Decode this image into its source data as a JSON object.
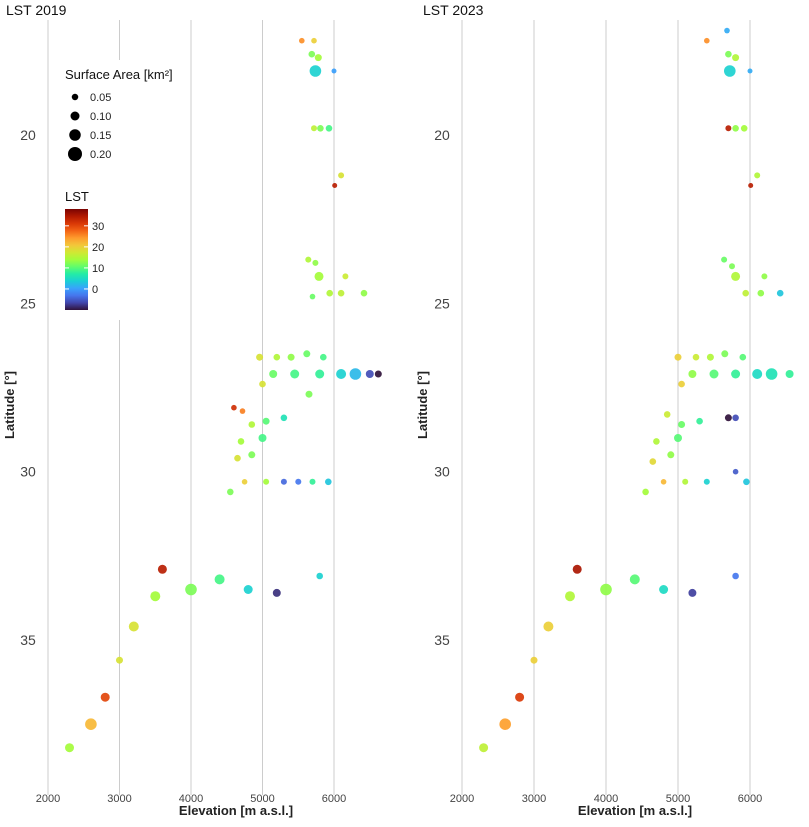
{
  "chart_data": [
    {
      "type": "scatter",
      "title": "LST 2019",
      "xlabel": "Elevation [m a.s.l.]",
      "ylabel": "Latitude [°]",
      "xlim": [
        1950,
        6800
      ],
      "ylim": [
        16.4,
        39.4
      ],
      "x_ticks": [
        2000,
        3000,
        4000,
        5000,
        6000
      ],
      "y_ticks": [
        20,
        25,
        30,
        35
      ],
      "y_reversed": true,
      "gridlines": "vertical",
      "size_variable": "Surface Area [km²]",
      "color_variable": "LST",
      "points": [
        {
          "x": 5550,
          "y": 17.2,
          "size": 0.03,
          "lst": 25
        },
        {
          "x": 5720,
          "y": 17.2,
          "size": 0.03,
          "lst": 20
        },
        {
          "x": 5690,
          "y": 17.6,
          "size": 0.05,
          "lst": 12
        },
        {
          "x": 5780,
          "y": 17.7,
          "size": 0.06,
          "lst": 14
        },
        {
          "x": 5740,
          "y": 18.1,
          "size": 0.15,
          "lst": 4
        },
        {
          "x": 6000,
          "y": 18.1,
          "size": 0.02,
          "lst": 0
        },
        {
          "x": 5720,
          "y": 19.8,
          "size": 0.04,
          "lst": 16
        },
        {
          "x": 5810,
          "y": 19.8,
          "size": 0.05,
          "lst": 12
        },
        {
          "x": 5930,
          "y": 19.8,
          "size": 0.05,
          "lst": 9
        },
        {
          "x": 6100,
          "y": 21.2,
          "size": 0.04,
          "lst": 18
        },
        {
          "x": 6010,
          "y": 21.5,
          "size": 0.02,
          "lst": 34
        },
        {
          "x": 5640,
          "y": 23.7,
          "size": 0.04,
          "lst": 15
        },
        {
          "x": 5740,
          "y": 23.8,
          "size": 0.04,
          "lst": 13
        },
        {
          "x": 5790,
          "y": 24.2,
          "size": 0.1,
          "lst": 14
        },
        {
          "x": 6160,
          "y": 24.2,
          "size": 0.04,
          "lst": 17
        },
        {
          "x": 5940,
          "y": 24.7,
          "size": 0.05,
          "lst": 15
        },
        {
          "x": 6100,
          "y": 24.7,
          "size": 0.05,
          "lst": 16
        },
        {
          "x": 6420,
          "y": 24.7,
          "size": 0.05,
          "lst": 13
        },
        {
          "x": 5700,
          "y": 24.8,
          "size": 0.03,
          "lst": 11
        },
        {
          "x": 4960,
          "y": 26.6,
          "size": 0.06,
          "lst": 18
        },
        {
          "x": 5200,
          "y": 26.6,
          "size": 0.05,
          "lst": 15
        },
        {
          "x": 5400,
          "y": 26.6,
          "size": 0.06,
          "lst": 13
        },
        {
          "x": 5620,
          "y": 26.5,
          "size": 0.06,
          "lst": 11
        },
        {
          "x": 5850,
          "y": 26.6,
          "size": 0.05,
          "lst": 9
        },
        {
          "x": 5150,
          "y": 27.1,
          "size": 0.08,
          "lst": 11
        },
        {
          "x": 5450,
          "y": 27.1,
          "size": 0.1,
          "lst": 9
        },
        {
          "x": 5800,
          "y": 27.1,
          "size": 0.1,
          "lst": 8
        },
        {
          "x": 6100,
          "y": 27.1,
          "size": 0.12,
          "lst": 4
        },
        {
          "x": 6300,
          "y": 27.1,
          "size": 0.15,
          "lst": 2
        },
        {
          "x": 6500,
          "y": 27.1,
          "size": 0.08,
          "lst": -6
        },
        {
          "x": 6620,
          "y": 27.1,
          "size": 0.06,
          "lst": -10
        },
        {
          "x": 5000,
          "y": 27.4,
          "size": 0.05,
          "lst": 18
        },
        {
          "x": 5650,
          "y": 27.7,
          "size": 0.06,
          "lst": 12
        },
        {
          "x": 4600,
          "y": 28.1,
          "size": 0.03,
          "lst": 32
        },
        {
          "x": 4720,
          "y": 28.2,
          "size": 0.03,
          "lst": 26
        },
        {
          "x": 4850,
          "y": 28.6,
          "size": 0.05,
          "lst": 15
        },
        {
          "x": 5050,
          "y": 28.5,
          "size": 0.06,
          "lst": 10
        },
        {
          "x": 5300,
          "y": 28.4,
          "size": 0.05,
          "lst": 6
        },
        {
          "x": 4700,
          "y": 29.1,
          "size": 0.05,
          "lst": 14
        },
        {
          "x": 5000,
          "y": 29.0,
          "size": 0.08,
          "lst": 9
        },
        {
          "x": 4650,
          "y": 29.6,
          "size": 0.05,
          "lst": 18
        },
        {
          "x": 4850,
          "y": 29.5,
          "size": 0.06,
          "lst": 12
        },
        {
          "x": 4550,
          "y": 30.6,
          "size": 0.05,
          "lst": 12
        },
        {
          "x": 4750,
          "y": 30.3,
          "size": 0.03,
          "lst": 20
        },
        {
          "x": 5050,
          "y": 30.3,
          "size": 0.04,
          "lst": 14
        },
        {
          "x": 5300,
          "y": 30.3,
          "size": 0.04,
          "lst": -4
        },
        {
          "x": 5500,
          "y": 30.3,
          "size": 0.04,
          "lst": -3
        },
        {
          "x": 5700,
          "y": 30.3,
          "size": 0.04,
          "lst": 8
        },
        {
          "x": 5920,
          "y": 30.3,
          "size": 0.05,
          "lst": 3
        },
        {
          "x": 2300,
          "y": 38.2,
          "size": 0.1,
          "lst": 14
        },
        {
          "x": 2600,
          "y": 37.5,
          "size": 0.15,
          "lst": 22
        },
        {
          "x": 2800,
          "y": 36.7,
          "size": 0.1,
          "lst": 30
        },
        {
          "x": 3000,
          "y": 35.6,
          "size": 0.06,
          "lst": 18
        },
        {
          "x": 3200,
          "y": 34.6,
          "size": 0.12,
          "lst": 18
        },
        {
          "x": 3500,
          "y": 33.7,
          "size": 0.12,
          "lst": 14
        },
        {
          "x": 3600,
          "y": 32.9,
          "size": 0.1,
          "lst": 34
        },
        {
          "x": 4000,
          "y": 33.5,
          "size": 0.15,
          "lst": 12
        },
        {
          "x": 4400,
          "y": 33.2,
          "size": 0.12,
          "lst": 9
        },
        {
          "x": 4800,
          "y": 33.5,
          "size": 0.1,
          "lst": 4
        },
        {
          "x": 5200,
          "y": 33.6,
          "size": 0.08,
          "lst": -8
        },
        {
          "x": 5800,
          "y": 33.1,
          "size": 0.05,
          "lst": 4
        }
      ]
    },
    {
      "type": "scatter",
      "title": "LST 2023",
      "xlabel": "Elevation [m a.s.l.]",
      "ylabel": "Latitude [°]",
      "xlim": [
        1950,
        6800
      ],
      "ylim": [
        16.4,
        39.4
      ],
      "x_ticks": [
        2000,
        3000,
        4000,
        5000,
        6000
      ],
      "y_ticks": [
        20,
        25,
        30,
        35
      ],
      "y_reversed": true,
      "gridlines": "vertical",
      "size_variable": "Surface Area [km²]",
      "color_variable": "LST",
      "points": [
        {
          "x": 5400,
          "y": 17.2,
          "size": 0.03,
          "lst": 25
        },
        {
          "x": 5680,
          "y": 16.9,
          "size": 0.03,
          "lst": 1
        },
        {
          "x": 5700,
          "y": 17.6,
          "size": 0.05,
          "lst": 12
        },
        {
          "x": 5800,
          "y": 17.7,
          "size": 0.06,
          "lst": 15
        },
        {
          "x": 5720,
          "y": 18.1,
          "size": 0.15,
          "lst": 4
        },
        {
          "x": 6000,
          "y": 18.1,
          "size": 0.02,
          "lst": 1
        },
        {
          "x": 5700,
          "y": 19.8,
          "size": 0.04,
          "lst": 34
        },
        {
          "x": 5800,
          "y": 19.8,
          "size": 0.05,
          "lst": 13
        },
        {
          "x": 5920,
          "y": 19.8,
          "size": 0.05,
          "lst": 14
        },
        {
          "x": 6100,
          "y": 21.2,
          "size": 0.04,
          "lst": 15
        },
        {
          "x": 6010,
          "y": 21.5,
          "size": 0.02,
          "lst": 34
        },
        {
          "x": 5640,
          "y": 23.7,
          "size": 0.04,
          "lst": 11
        },
        {
          "x": 5750,
          "y": 23.9,
          "size": 0.04,
          "lst": 12
        },
        {
          "x": 5800,
          "y": 24.2,
          "size": 0.1,
          "lst": 15
        },
        {
          "x": 6200,
          "y": 24.2,
          "size": 0.04,
          "lst": 13
        },
        {
          "x": 5940,
          "y": 24.7,
          "size": 0.05,
          "lst": 16
        },
        {
          "x": 6150,
          "y": 24.7,
          "size": 0.05,
          "lst": 13
        },
        {
          "x": 6420,
          "y": 24.7,
          "size": 0.05,
          "lst": 3
        },
        {
          "x": 5000,
          "y": 26.6,
          "size": 0.06,
          "lst": 20
        },
        {
          "x": 5250,
          "y": 26.6,
          "size": 0.05,
          "lst": 17
        },
        {
          "x": 5450,
          "y": 26.6,
          "size": 0.06,
          "lst": 15
        },
        {
          "x": 5650,
          "y": 26.5,
          "size": 0.06,
          "lst": 12
        },
        {
          "x": 5900,
          "y": 26.6,
          "size": 0.05,
          "lst": 10
        },
        {
          "x": 5200,
          "y": 27.1,
          "size": 0.08,
          "lst": 13
        },
        {
          "x": 5500,
          "y": 27.1,
          "size": 0.1,
          "lst": 10
        },
        {
          "x": 5800,
          "y": 27.1,
          "size": 0.1,
          "lst": 8
        },
        {
          "x": 6100,
          "y": 27.1,
          "size": 0.12,
          "lst": 5
        },
        {
          "x": 6300,
          "y": 27.1,
          "size": 0.15,
          "lst": 6
        },
        {
          "x": 6550,
          "y": 27.1,
          "size": 0.08,
          "lst": 8
        },
        {
          "x": 5050,
          "y": 27.4,
          "size": 0.05,
          "lst": 20
        },
        {
          "x": 5700,
          "y": 28.4,
          "size": 0.06,
          "lst": -10
        },
        {
          "x": 5800,
          "y": 28.4,
          "size": 0.05,
          "lst": -6
        },
        {
          "x": 4850,
          "y": 28.3,
          "size": 0.05,
          "lst": 17
        },
        {
          "x": 5050,
          "y": 28.6,
          "size": 0.06,
          "lst": 11
        },
        {
          "x": 5300,
          "y": 28.5,
          "size": 0.05,
          "lst": 8
        },
        {
          "x": 4700,
          "y": 29.1,
          "size": 0.05,
          "lst": 15
        },
        {
          "x": 5000,
          "y": 29.0,
          "size": 0.08,
          "lst": 10
        },
        {
          "x": 4650,
          "y": 29.7,
          "size": 0.05,
          "lst": 19
        },
        {
          "x": 4900,
          "y": 29.5,
          "size": 0.06,
          "lst": 13
        },
        {
          "x": 4550,
          "y": 30.6,
          "size": 0.05,
          "lst": 14
        },
        {
          "x": 4800,
          "y": 30.3,
          "size": 0.03,
          "lst": 22
        },
        {
          "x": 5100,
          "y": 30.3,
          "size": 0.04,
          "lst": 15
        },
        {
          "x": 5400,
          "y": 30.3,
          "size": 0.04,
          "lst": 4
        },
        {
          "x": 5800,
          "y": 30.0,
          "size": 0.03,
          "lst": -5
        },
        {
          "x": 5950,
          "y": 30.3,
          "size": 0.05,
          "lst": 3
        },
        {
          "x": 2300,
          "y": 38.2,
          "size": 0.1,
          "lst": 16
        },
        {
          "x": 2600,
          "y": 37.5,
          "size": 0.15,
          "lst": 24
        },
        {
          "x": 2800,
          "y": 36.7,
          "size": 0.1,
          "lst": 31
        },
        {
          "x": 3000,
          "y": 35.6,
          "size": 0.06,
          "lst": 20
        },
        {
          "x": 3200,
          "y": 34.6,
          "size": 0.12,
          "lst": 20
        },
        {
          "x": 3500,
          "y": 33.7,
          "size": 0.12,
          "lst": 15
        },
        {
          "x": 3600,
          "y": 32.9,
          "size": 0.1,
          "lst": 35
        },
        {
          "x": 4000,
          "y": 33.5,
          "size": 0.15,
          "lst": 13
        },
        {
          "x": 4400,
          "y": 33.2,
          "size": 0.12,
          "lst": 10
        },
        {
          "x": 4800,
          "y": 33.5,
          "size": 0.1,
          "lst": 5
        },
        {
          "x": 5200,
          "y": 33.6,
          "size": 0.08,
          "lst": -7
        },
        {
          "x": 5800,
          "y": 33.1,
          "size": 0.05,
          "lst": -3
        }
      ]
    }
  ],
  "legend": {
    "size_title": "Surface Area [km²]",
    "size_entries": [
      {
        "label": "0.05",
        "value": 0.05
      },
      {
        "label": "0.10",
        "value": 0.1
      },
      {
        "label": "0.15",
        "value": 0.15
      },
      {
        "label": "0.20",
        "value": 0.2
      }
    ],
    "color_title": "LST",
    "color_range": [
      -10,
      38
    ],
    "color_ticks": [
      {
        "label": "30",
        "value": 30
      },
      {
        "label": "20",
        "value": 20
      },
      {
        "label": "10",
        "value": 10
      },
      {
        "label": "0",
        "value": 0
      }
    ],
    "colors": {
      "stops": [
        "#30123b",
        "#4145ab",
        "#4675ed",
        "#39a2fc",
        "#1bcfd4",
        "#24eca6",
        "#61fc6c",
        "#a4fc3b",
        "#d1e834",
        "#f3c63a",
        "#fe9b2d",
        "#f36315",
        "#d93806",
        "#b11901",
        "#7a0402"
      ],
      "gridline": "#cccccc"
    }
  }
}
